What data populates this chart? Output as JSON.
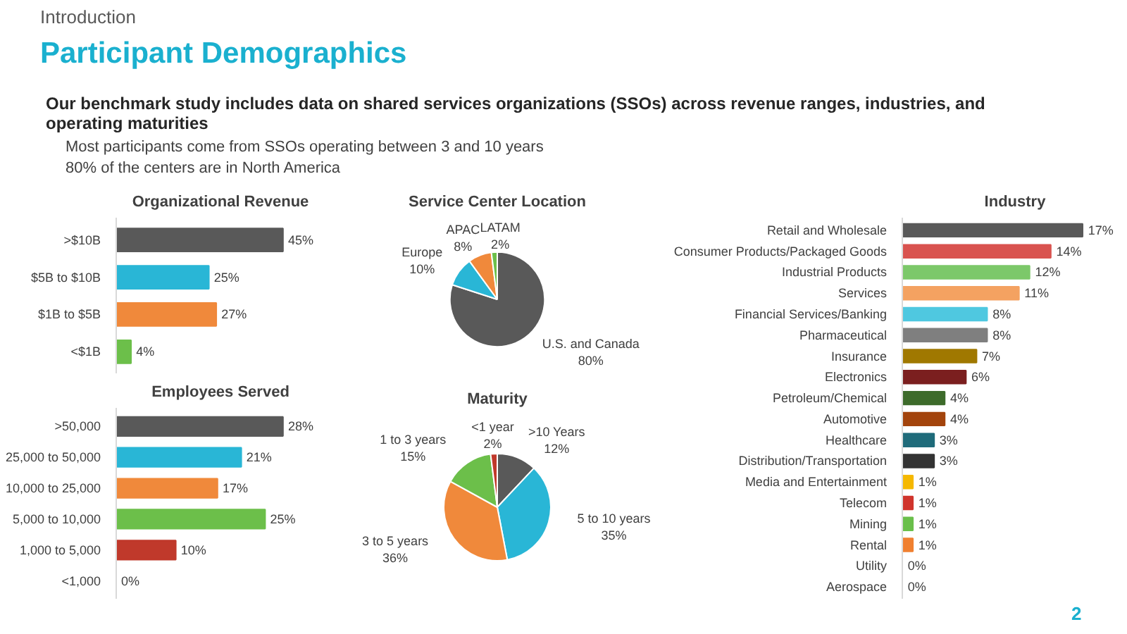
{
  "chart_data": [
    {
      "type": "other",
      "title": "Participant Demographics",
      "subtitle": "Our benchmark study includes data on shared services organizations (SSOs) across revenue ranges, industries, and operating maturities",
      "annotations": [
        "Introduction",
        "Most participants come from SSOs operating between 3 and 10 years",
        "80% of the centers are in North America"
      ]
    },
    {
      "type": "bar",
      "orientation": "horizontal",
      "title": "Organizational Revenue",
      "categories": [
        ">$10B",
        "$5B to $10B",
        "$1B to $5B",
        "<$1B"
      ],
      "values": [
        45,
        25,
        27,
        4
      ],
      "colors": [
        "#595959",
        "#29b6d6",
        "#f0893b",
        "#6cbf4a"
      ],
      "value_labels": [
        "45%",
        "25%",
        "27%",
        "4%"
      ]
    },
    {
      "type": "bar",
      "orientation": "horizontal",
      "title": "Employees Served",
      "categories": [
        ">50,000",
        "25,000 to 50,000",
        "10,000 to 25,000",
        "5,000 to 10,000",
        "1,000 to 5,000",
        "<1,000"
      ],
      "values": [
        28,
        21,
        17,
        25,
        10,
        0
      ],
      "colors": [
        "#595959",
        "#29b6d6",
        "#f0893b",
        "#6cbf4a",
        "#c0392b",
        "#7f7f7f"
      ],
      "value_labels": [
        "28%",
        "21%",
        "17%",
        "25%",
        "10%",
        "0%"
      ]
    },
    {
      "type": "pie",
      "title": "Service Center Location",
      "categories": [
        "U.S. and Canada",
        "Europe",
        "APAC",
        "LATAM"
      ],
      "values": [
        80,
        10,
        8,
        2
      ],
      "colors": [
        "#595959",
        "#29b6d6",
        "#f0893b",
        "#6cbf4a"
      ],
      "value_labels": [
        "80%",
        "10%",
        "8%",
        "2%"
      ]
    },
    {
      "type": "pie",
      "title": "Maturity",
      "categories": [
        ">10 Years",
        "5 to 10 years",
        "3 to 5 years",
        "1 to 3 years",
        "<1 year"
      ],
      "values": [
        12,
        35,
        36,
        15,
        2
      ],
      "colors": [
        "#595959",
        "#29b6d6",
        "#f0893b",
        "#6cbf4a",
        "#c0392b"
      ],
      "value_labels": [
        "12%",
        "35%",
        "36%",
        "15%",
        "2%"
      ]
    },
    {
      "type": "bar",
      "orientation": "horizontal",
      "title": "Industry",
      "categories": [
        "Retail and Wholesale",
        "Consumer Products/Packaged Goods",
        "Industrial Products",
        "Services",
        "Financial Services/Banking",
        "Pharmaceutical",
        "Insurance",
        "Electronics",
        "Petroleum/Chemical",
        "Automotive",
        "Healthcare",
        "Distribution/Transportation",
        "Media and Entertainment",
        "Telecom",
        "Mining",
        "Rental",
        "Utility",
        "Aerospace"
      ],
      "values": [
        17,
        14,
        12,
        11,
        8,
        8,
        7,
        6,
        4,
        4,
        3,
        3,
        1,
        1,
        1,
        1,
        0,
        0
      ],
      "colors": [
        "#595959",
        "#d9534f",
        "#7cc86a",
        "#f4a261",
        "#4fc8e0",
        "#7f7f7f",
        "#a07800",
        "#7b1f1f",
        "#3d6b2b",
        "#a3440c",
        "#1f6b7a",
        "#333333",
        "#f5b800",
        "#d0342c",
        "#6abf4b",
        "#f08030",
        "#bfbfbf",
        "#bfbfbf"
      ],
      "value_labels": [
        "17%",
        "14%",
        "12%",
        "11%",
        "8%",
        "8%",
        "7%",
        "6%",
        "4%",
        "4%",
        "3%",
        "3%",
        "1%",
        "1%",
        "1%",
        "1%",
        "0%",
        "0%"
      ]
    },
    {
      "type": "other",
      "annotations": [
        "2"
      ]
    }
  ]
}
